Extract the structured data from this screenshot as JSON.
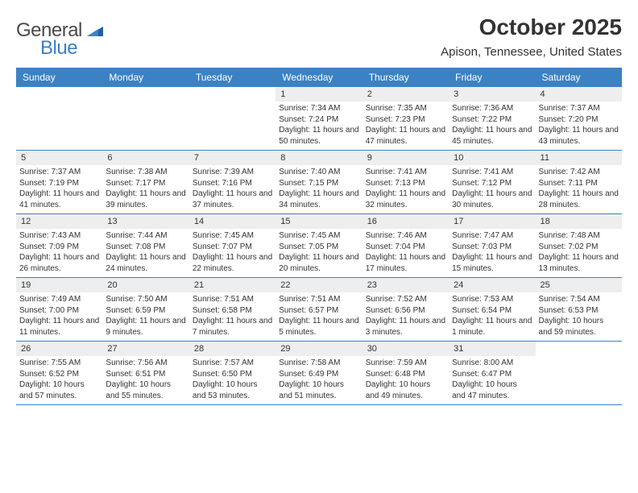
{
  "logo": {
    "text_general": "General",
    "text_blue": "Blue",
    "color_general": "#4a4a4a",
    "color_blue": "#3b7fc4"
  },
  "title": "October 2025",
  "subtitle": "Apison, Tennessee, United States",
  "colors": {
    "header_bar": "#3b82c4",
    "header_text": "#ffffff",
    "daynum_bg": "#eeeeee",
    "row_border": "#3b82c4",
    "text": "#333333",
    "background": "#ffffff"
  },
  "typography": {
    "title_fontsize": 28,
    "subtitle_fontsize": 15,
    "dayname_fontsize": 12,
    "daynum_fontsize": 11,
    "cell_fontsize": 10
  },
  "daynames": [
    "Sunday",
    "Monday",
    "Tuesday",
    "Wednesday",
    "Thursday",
    "Friday",
    "Saturday"
  ],
  "weeks": [
    [
      {
        "day": "",
        "sunrise": "",
        "sunset": "",
        "daylight": ""
      },
      {
        "day": "",
        "sunrise": "",
        "sunset": "",
        "daylight": ""
      },
      {
        "day": "",
        "sunrise": "",
        "sunset": "",
        "daylight": ""
      },
      {
        "day": "1",
        "sunrise": "Sunrise: 7:34 AM",
        "sunset": "Sunset: 7:24 PM",
        "daylight": "Daylight: 11 hours and 50 minutes."
      },
      {
        "day": "2",
        "sunrise": "Sunrise: 7:35 AM",
        "sunset": "Sunset: 7:23 PM",
        "daylight": "Daylight: 11 hours and 47 minutes."
      },
      {
        "day": "3",
        "sunrise": "Sunrise: 7:36 AM",
        "sunset": "Sunset: 7:22 PM",
        "daylight": "Daylight: 11 hours and 45 minutes."
      },
      {
        "day": "4",
        "sunrise": "Sunrise: 7:37 AM",
        "sunset": "Sunset: 7:20 PM",
        "daylight": "Daylight: 11 hours and 43 minutes."
      }
    ],
    [
      {
        "day": "5",
        "sunrise": "Sunrise: 7:37 AM",
        "sunset": "Sunset: 7:19 PM",
        "daylight": "Daylight: 11 hours and 41 minutes."
      },
      {
        "day": "6",
        "sunrise": "Sunrise: 7:38 AM",
        "sunset": "Sunset: 7:17 PM",
        "daylight": "Daylight: 11 hours and 39 minutes."
      },
      {
        "day": "7",
        "sunrise": "Sunrise: 7:39 AM",
        "sunset": "Sunset: 7:16 PM",
        "daylight": "Daylight: 11 hours and 37 minutes."
      },
      {
        "day": "8",
        "sunrise": "Sunrise: 7:40 AM",
        "sunset": "Sunset: 7:15 PM",
        "daylight": "Daylight: 11 hours and 34 minutes."
      },
      {
        "day": "9",
        "sunrise": "Sunrise: 7:41 AM",
        "sunset": "Sunset: 7:13 PM",
        "daylight": "Daylight: 11 hours and 32 minutes."
      },
      {
        "day": "10",
        "sunrise": "Sunrise: 7:41 AM",
        "sunset": "Sunset: 7:12 PM",
        "daylight": "Daylight: 11 hours and 30 minutes."
      },
      {
        "day": "11",
        "sunrise": "Sunrise: 7:42 AM",
        "sunset": "Sunset: 7:11 PM",
        "daylight": "Daylight: 11 hours and 28 minutes."
      }
    ],
    [
      {
        "day": "12",
        "sunrise": "Sunrise: 7:43 AM",
        "sunset": "Sunset: 7:09 PM",
        "daylight": "Daylight: 11 hours and 26 minutes."
      },
      {
        "day": "13",
        "sunrise": "Sunrise: 7:44 AM",
        "sunset": "Sunset: 7:08 PM",
        "daylight": "Daylight: 11 hours and 24 minutes."
      },
      {
        "day": "14",
        "sunrise": "Sunrise: 7:45 AM",
        "sunset": "Sunset: 7:07 PM",
        "daylight": "Daylight: 11 hours and 22 minutes."
      },
      {
        "day": "15",
        "sunrise": "Sunrise: 7:45 AM",
        "sunset": "Sunset: 7:05 PM",
        "daylight": "Daylight: 11 hours and 20 minutes."
      },
      {
        "day": "16",
        "sunrise": "Sunrise: 7:46 AM",
        "sunset": "Sunset: 7:04 PM",
        "daylight": "Daylight: 11 hours and 17 minutes."
      },
      {
        "day": "17",
        "sunrise": "Sunrise: 7:47 AM",
        "sunset": "Sunset: 7:03 PM",
        "daylight": "Daylight: 11 hours and 15 minutes."
      },
      {
        "day": "18",
        "sunrise": "Sunrise: 7:48 AM",
        "sunset": "Sunset: 7:02 PM",
        "daylight": "Daylight: 11 hours and 13 minutes."
      }
    ],
    [
      {
        "day": "19",
        "sunrise": "Sunrise: 7:49 AM",
        "sunset": "Sunset: 7:00 PM",
        "daylight": "Daylight: 11 hours and 11 minutes."
      },
      {
        "day": "20",
        "sunrise": "Sunrise: 7:50 AM",
        "sunset": "Sunset: 6:59 PM",
        "daylight": "Daylight: 11 hours and 9 minutes."
      },
      {
        "day": "21",
        "sunrise": "Sunrise: 7:51 AM",
        "sunset": "Sunset: 6:58 PM",
        "daylight": "Daylight: 11 hours and 7 minutes."
      },
      {
        "day": "22",
        "sunrise": "Sunrise: 7:51 AM",
        "sunset": "Sunset: 6:57 PM",
        "daylight": "Daylight: 11 hours and 5 minutes."
      },
      {
        "day": "23",
        "sunrise": "Sunrise: 7:52 AM",
        "sunset": "Sunset: 6:56 PM",
        "daylight": "Daylight: 11 hours and 3 minutes."
      },
      {
        "day": "24",
        "sunrise": "Sunrise: 7:53 AM",
        "sunset": "Sunset: 6:54 PM",
        "daylight": "Daylight: 11 hours and 1 minute."
      },
      {
        "day": "25",
        "sunrise": "Sunrise: 7:54 AM",
        "sunset": "Sunset: 6:53 PM",
        "daylight": "Daylight: 10 hours and 59 minutes."
      }
    ],
    [
      {
        "day": "26",
        "sunrise": "Sunrise: 7:55 AM",
        "sunset": "Sunset: 6:52 PM",
        "daylight": "Daylight: 10 hours and 57 minutes."
      },
      {
        "day": "27",
        "sunrise": "Sunrise: 7:56 AM",
        "sunset": "Sunset: 6:51 PM",
        "daylight": "Daylight: 10 hours and 55 minutes."
      },
      {
        "day": "28",
        "sunrise": "Sunrise: 7:57 AM",
        "sunset": "Sunset: 6:50 PM",
        "daylight": "Daylight: 10 hours and 53 minutes."
      },
      {
        "day": "29",
        "sunrise": "Sunrise: 7:58 AM",
        "sunset": "Sunset: 6:49 PM",
        "daylight": "Daylight: 10 hours and 51 minutes."
      },
      {
        "day": "30",
        "sunrise": "Sunrise: 7:59 AM",
        "sunset": "Sunset: 6:48 PM",
        "daylight": "Daylight: 10 hours and 49 minutes."
      },
      {
        "day": "31",
        "sunrise": "Sunrise: 8:00 AM",
        "sunset": "Sunset: 6:47 PM",
        "daylight": "Daylight: 10 hours and 47 minutes."
      },
      {
        "day": "",
        "sunrise": "",
        "sunset": "",
        "daylight": ""
      }
    ]
  ]
}
